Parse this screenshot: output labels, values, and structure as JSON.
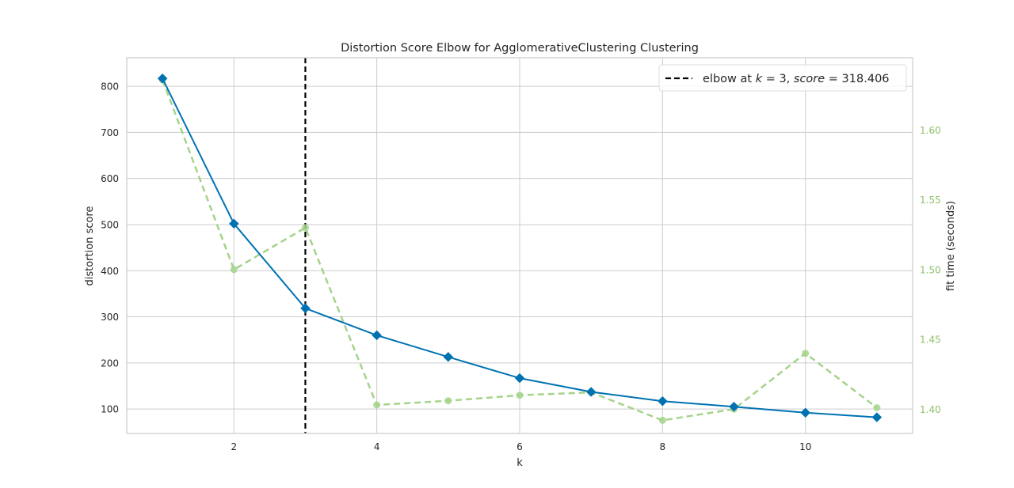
{
  "chart_data": {
    "type": "line",
    "title": "Distortion Score Elbow for AgglomerativeClustering Clustering",
    "xlabel": "k",
    "ylabel": "distortion score",
    "y2label": "fit time (seconds)",
    "x": [
      1,
      2,
      3,
      4,
      5,
      6,
      7,
      8,
      9,
      10,
      11
    ],
    "series": [
      {
        "axis": "left",
        "values": [
          817,
          502,
          318.406,
          260,
          213,
          167,
          137,
          117,
          105,
          92,
          82
        ],
        "color": "#0072B2",
        "marker": "diamond",
        "style": "solid"
      },
      {
        "axis": "right",
        "values": [
          1.636,
          1.5,
          1.53,
          1.403,
          1.406,
          1.41,
          1.412,
          1.392,
          1.4,
          1.44,
          1.401
        ],
        "color": "#A5D38B",
        "marker": "circle",
        "style": "dashed"
      }
    ],
    "xlim": [
      0.5,
      11.5
    ],
    "ylim": [
      47,
      862
    ],
    "y2lim": [
      1.3826,
      1.6518
    ],
    "xticks": [
      "2",
      "4",
      "6",
      "8",
      "10"
    ],
    "yticks": [
      "100",
      "200",
      "300",
      "400",
      "500",
      "600",
      "700",
      "800"
    ],
    "y2ticks": [
      "1.40",
      "1.45",
      "1.50",
      "1.55",
      "1.60"
    ],
    "elbow": {
      "k": 3,
      "score": 318.406,
      "color": "#000000"
    },
    "legend": {
      "position": "top-right",
      "text_prefix": "elbow at ",
      "k_symbol": "k",
      "eq1": " = 3, ",
      "score_symbol": "score",
      "eq2": " = 318.406"
    },
    "grid": true,
    "y2_color": "#8FC16A"
  }
}
